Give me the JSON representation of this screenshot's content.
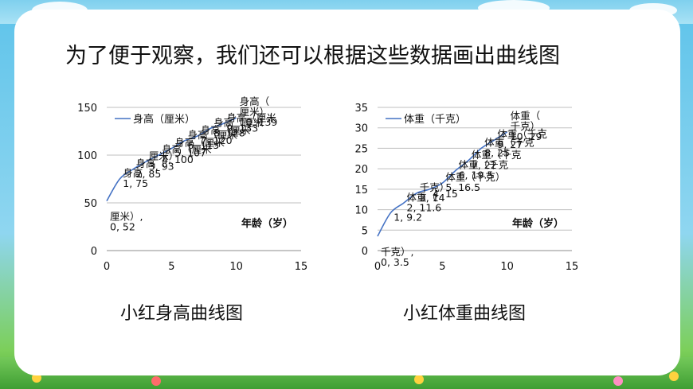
{
  "heading": "为了便于观察，我们还可以根据这些数据画出曲线图",
  "captions": [
    "小红身高曲线图",
    "小红体重曲线图"
  ],
  "chart_data": [
    {
      "type": "line",
      "title": "",
      "xlabel": "年龄（岁）",
      "ylabel": "",
      "series": [
        {
          "name": "身高（厘米）",
          "color": "#4472c4",
          "x": [
            0,
            1,
            2,
            3,
            4,
            5,
            6,
            7,
            8,
            9,
            10
          ],
          "values": [
            52,
            75,
            85,
            93,
            100,
            107,
            115,
            120,
            128,
            133,
            139
          ]
        }
      ],
      "xlim": [
        0,
        15
      ],
      "ylim": [
        0,
        150
      ],
      "xticks": [
        0,
        5,
        10,
        15
      ],
      "yticks": [
        0,
        50,
        100,
        150
      ],
      "grid": true,
      "legend": "top-left",
      "point_labels": [
        [
          "厘米）,",
          "0, 52"
        ],
        [
          "身高",
          "1, 75"
        ],
        [
          "身高（",
          "2, 85"
        ],
        [
          "厘米）",
          "3, 93"
        ],
        [
          "身高（厘米",
          "4, 100"
        ],
        [
          "身高（厘米",
          "5, 107"
        ],
        [
          "身高（厘米",
          "6, 115"
        ],
        [
          "身高（厘米",
          "7, 120"
        ],
        [
          "身高（厘米",
          "8, 128"
        ],
        [
          "身高（厘米",
          "9, 133"
        ],
        [
          "身高（",
          "厘米）,",
          "10, 139"
        ]
      ]
    },
    {
      "type": "line",
      "title": "",
      "xlabel": "年龄（岁）",
      "ylabel": "",
      "series": [
        {
          "name": "体重（千克）",
          "color": "#4472c4",
          "x": [
            0,
            1,
            2,
            3,
            4,
            5,
            6,
            7,
            8,
            9,
            10
          ],
          "values": [
            3.5,
            9.2,
            11.6,
            14,
            15,
            16.5,
            19.5,
            22,
            25,
            27,
            29
          ]
        }
      ],
      "xlim": [
        0,
        15
      ],
      "ylim": [
        0,
        35
      ],
      "xticks": [
        0,
        5,
        10,
        15
      ],
      "yticks": [
        0,
        5,
        10,
        15,
        20,
        25,
        30,
        35
      ],
      "grid": true,
      "legend": "top-left",
      "point_labels": [
        [
          "千克）,",
          "0, 3.5"
        ],
        [
          "1, 9.2"
        ],
        [
          "体重（",
          "2, 11.6"
        ],
        [
          "千克）",
          "3, 14"
        ],
        [
          "4, 15"
        ],
        [
          "体重（千克）",
          "5, 16.5"
        ],
        [
          "体重（千克",
          "6, 19.5"
        ],
        [
          "体重（千克",
          "7, 22"
        ],
        [
          "体重（千克",
          "8, 25"
        ],
        [
          "体重（千克",
          "9, 27"
        ],
        [
          "体重（",
          "千克）,",
          "10, 29"
        ]
      ]
    }
  ]
}
